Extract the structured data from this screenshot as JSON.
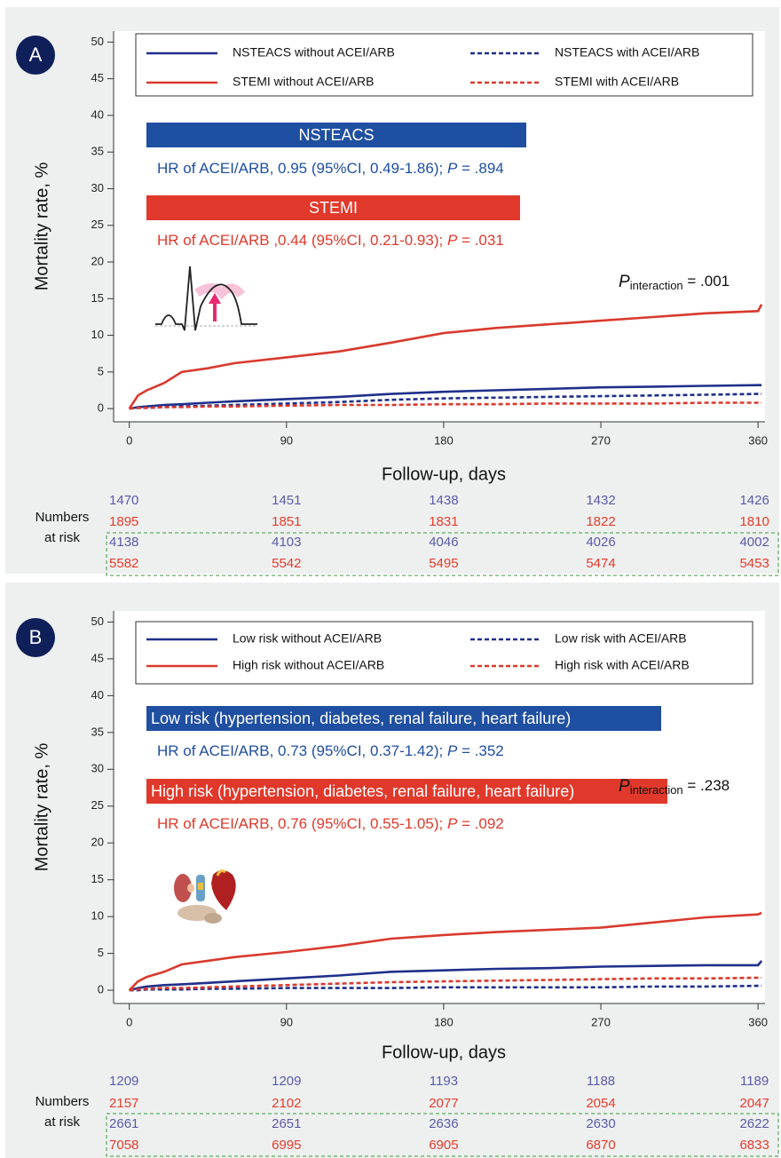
{
  "chart_data": [
    {
      "type": "line",
      "panel": "A",
      "ylabel": "Mortality rate, %",
      "xlabel": "Follow-up, days",
      "x": [
        0,
        5,
        10,
        20,
        30,
        45,
        60,
        90,
        120,
        150,
        180,
        210,
        240,
        270,
        300,
        330,
        360,
        362
      ],
      "xlim": [
        -9,
        364
      ],
      "xticks": [
        0,
        90,
        180,
        270,
        360
      ],
      "ylim": [
        -1.8,
        51.5
      ],
      "yticks": [
        0,
        5,
        10,
        15,
        20,
        25,
        30,
        35,
        40,
        45,
        50
      ],
      "series": [
        {
          "name": "NSTEACS without ACEI/ARB",
          "color": "#1f2f8a",
          "linestyle": "solid",
          "values": [
            0,
            0.2,
            0.3,
            0.5,
            0.6,
            0.8,
            1.0,
            1.3,
            1.6,
            2.0,
            2.3,
            2.5,
            2.7,
            2.9,
            3.0,
            3.1,
            3.2,
            3.2
          ]
        },
        {
          "name": "NSTEACS with ACEI/ARB",
          "color": "#1f2f8a",
          "linestyle": "dashed",
          "values": [
            0,
            0.1,
            0.1,
            0.2,
            0.3,
            0.4,
            0.5,
            0.7,
            0.9,
            1.2,
            1.4,
            1.5,
            1.6,
            1.7,
            1.8,
            1.9,
            2.0,
            2.0
          ]
        },
        {
          "name": "STEMI without ACEI/ARB",
          "color": "#d83a2e",
          "linestyle": "solid",
          "values": [
            0,
            1.8,
            2.5,
            3.5,
            5.0,
            5.5,
            6.2,
            7.0,
            7.8,
            9.0,
            10.3,
            11.0,
            11.5,
            12.0,
            12.5,
            13.0,
            13.3,
            14.2
          ]
        },
        {
          "name": "STEMI with ACEI/ARB",
          "color": "#d83a2e",
          "linestyle": "dashed",
          "values": [
            0,
            0.1,
            0.1,
            0.2,
            0.2,
            0.3,
            0.3,
            0.4,
            0.5,
            0.5,
            0.6,
            0.6,
            0.7,
            0.7,
            0.7,
            0.8,
            0.8,
            0.8
          ]
        }
      ],
      "groups": [
        {
          "label": "NSTEACS",
          "color": "#1f4fa0",
          "hr": {
            "text": "HR of ACEI/ARB, 0.95 (95%CI, 0.49-1.86); ",
            "p": "P",
            "value": " = .894"
          }
        },
        {
          "label": "STEMI",
          "color": "#e0392b",
          "hr": {
            "text": "HR of ACEI/ARB ,0.44 (95%CI, 0.21-0.93); ",
            "p": "P",
            "value": " = .031"
          }
        }
      ],
      "interaction": {
        "p": "P",
        "sub": "interaction",
        "value": " = .001"
      },
      "risk_table": {
        "label": [
          "Numbers",
          "at risk"
        ],
        "rows": [
          {
            "color": "#5a5aa8",
            "values": [
              1470,
              1451,
              1438,
              1432,
              1426
            ]
          },
          {
            "color": "#e83a2a",
            "values": [
              1895,
              1851,
              1831,
              1822,
              1810
            ]
          },
          {
            "color": "#5a5aa8",
            "values": [
              4138,
              4103,
              4046,
              4026,
              4002
            ]
          },
          {
            "color": "#e83a2a",
            "values": [
              5582,
              5542,
              5495,
              5474,
              5453
            ]
          }
        ]
      }
    },
    {
      "type": "line",
      "panel": "B",
      "ylabel": "Mortality rate, %",
      "xlabel": "Follow-up, days",
      "x": [
        0,
        5,
        10,
        20,
        30,
        45,
        60,
        90,
        120,
        150,
        180,
        210,
        240,
        270,
        300,
        330,
        360,
        362
      ],
      "xlim": [
        -9,
        364
      ],
      "xticks": [
        0,
        90,
        180,
        270,
        360
      ],
      "ylim": [
        -1.8,
        51.5
      ],
      "yticks": [
        0,
        5,
        10,
        15,
        20,
        25,
        30,
        35,
        40,
        45,
        50
      ],
      "series": [
        {
          "name": "Low risk without ACEI/ARB",
          "color": "#1f2f8a",
          "linestyle": "solid",
          "values": [
            0,
            0.3,
            0.5,
            0.7,
            0.8,
            1.0,
            1.2,
            1.6,
            2.0,
            2.5,
            2.7,
            2.9,
            3.0,
            3.2,
            3.3,
            3.4,
            3.4,
            4.0
          ]
        },
        {
          "name": "Low risk with ACEI/ARB",
          "color": "#1f2f8a",
          "linestyle": "dashed",
          "values": [
            0,
            0,
            0.1,
            0.1,
            0.1,
            0.2,
            0.2,
            0.3,
            0.3,
            0.3,
            0.4,
            0.4,
            0.4,
            0.4,
            0.5,
            0.5,
            0.6,
            0.6
          ]
        },
        {
          "name": "High risk without ACEI/ARB",
          "color": "#d83a2e",
          "linestyle": "solid",
          "values": [
            0,
            1.2,
            1.8,
            2.5,
            3.5,
            4.0,
            4.5,
            5.2,
            6.0,
            7.0,
            7.5,
            7.9,
            8.2,
            8.5,
            9.2,
            9.9,
            10.3,
            10.5
          ]
        },
        {
          "name": "High risk with ACEI/ARB",
          "color": "#d83a2e",
          "linestyle": "dashed",
          "values": [
            0,
            0.1,
            0.2,
            0.3,
            0.3,
            0.4,
            0.5,
            0.7,
            0.9,
            1.1,
            1.2,
            1.3,
            1.4,
            1.5,
            1.6,
            1.6,
            1.7,
            1.7
          ]
        }
      ],
      "groups": [
        {
          "label": "Low risk (hypertension, diabetes, renal failure, heart failure)",
          "color": "#1f4fa0",
          "hr": {
            "text": "HR of ACEI/ARB, 0.73 (95%CI, 0.37-1.42); ",
            "p": "P",
            "value": " = .352"
          }
        },
        {
          "label": "High risk (hypertension, diabetes, renal failure, heart failure)",
          "color": "#e0392b",
          "hr": {
            "text": "HR of ACEI/ARB, 0.76 (95%CI, 0.55-1.05); ",
            "p": "P",
            "value": " = .092"
          }
        }
      ],
      "interaction": {
        "p": "P",
        "sub": "interaction",
        "value": " = .238"
      },
      "risk_table": {
        "label": [
          "Numbers",
          "at risk"
        ],
        "rows": [
          {
            "color": "#5a5aa8",
            "values": [
              1209,
              1209,
              1193,
              1188,
              1189
            ]
          },
          {
            "color": "#e83a2a",
            "values": [
              2157,
              2102,
              2077,
              2054,
              2047
            ]
          },
          {
            "color": "#5a5aa8",
            "values": [
              2661,
              2651,
              2636,
              2630,
              2622
            ]
          },
          {
            "color": "#e83a2a",
            "values": [
              7058,
              6995,
              6905,
              6870,
              6833
            ]
          }
        ]
      }
    }
  ]
}
